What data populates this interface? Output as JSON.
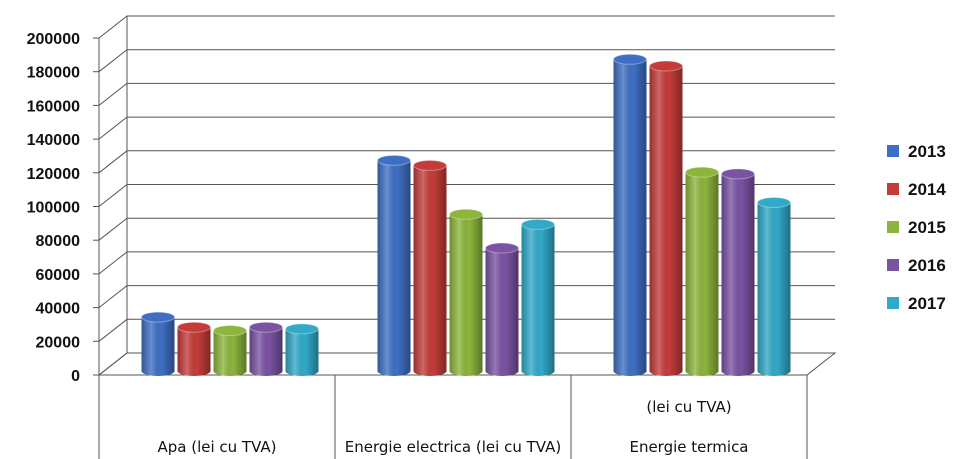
{
  "chart_data": {
    "type": "bar",
    "categories": [
      [
        "Apa (lei cu TVA)"
      ],
      [
        "Energie electrica (lei cu TVA)"
      ],
      [
        "(lei cu TVA)",
        "Energie termica"
      ]
    ],
    "series": [
      {
        "name": "2013",
        "color": "#3f6fc4",
        "values": [
          32000,
          125000,
          185000
        ]
      },
      {
        "name": "2014",
        "color": "#c43c3a",
        "values": [
          26000,
          122000,
          181000
        ]
      },
      {
        "name": "2015",
        "color": "#8cb53c",
        "values": [
          24000,
          93000,
          118000
        ]
      },
      {
        "name": "2016",
        "color": "#7a53a3",
        "values": [
          26000,
          73000,
          117000
        ]
      },
      {
        "name": "2017",
        "color": "#31a9c8",
        "values": [
          25000,
          87000,
          100000
        ]
      }
    ],
    "yticks": [
      "0",
      "20000",
      "40000",
      "60000",
      "80000",
      "100000",
      "120000",
      "140000",
      "160000",
      "180000",
      "200000"
    ],
    "ylim": [
      0,
      200000
    ],
    "grid": true,
    "legend": "right"
  }
}
